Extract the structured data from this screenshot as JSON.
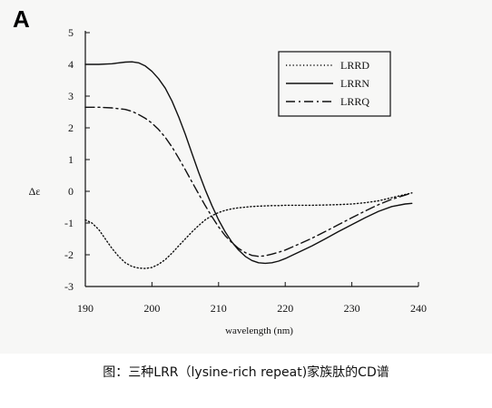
{
  "panel_label": "A",
  "caption": "图：三种LRR（lysine-rich repeat)家族肽的CD谱",
  "chart_data": {
    "type": "line",
    "title": "",
    "xlabel": "wavelength (nm)",
    "ylabel": "Δε",
    "xlim": [
      190,
      240
    ],
    "ylim": [
      -3,
      5
    ],
    "x_ticks": [
      190,
      200,
      210,
      220,
      230,
      240
    ],
    "y_ticks": [
      5,
      4,
      3,
      2,
      1,
      0,
      -1,
      -2,
      -3
    ],
    "grid": false,
    "legend_position": "top-right",
    "series": [
      {
        "name": "LRRD",
        "dash": "dotted",
        "x": [
          190,
          191,
          192,
          193,
          194,
          195,
          196,
          197,
          198,
          199,
          200,
          201,
          202,
          203,
          204,
          205,
          206,
          207,
          208,
          209,
          210,
          211,
          212,
          213,
          214,
          215,
          216,
          217,
          218,
          219,
          220,
          222,
          224,
          226,
          228,
          230,
          232,
          234,
          236,
          238,
          239
        ],
        "y": [
          -0.9,
          -1.0,
          -1.2,
          -1.5,
          -1.8,
          -2.05,
          -2.25,
          -2.37,
          -2.42,
          -2.43,
          -2.4,
          -2.3,
          -2.15,
          -1.95,
          -1.72,
          -1.5,
          -1.28,
          -1.08,
          -0.9,
          -0.77,
          -0.67,
          -0.6,
          -0.55,
          -0.52,
          -0.5,
          -0.48,
          -0.47,
          -0.46,
          -0.45,
          -0.45,
          -0.44,
          -0.44,
          -0.44,
          -0.43,
          -0.42,
          -0.4,
          -0.36,
          -0.3,
          -0.2,
          -0.1,
          -0.05
        ]
      },
      {
        "name": "LRRN",
        "dash": "solid",
        "x": [
          190,
          192,
          194,
          196,
          197,
          198,
          199,
          200,
          201,
          202,
          203,
          204,
          205,
          206,
          207,
          208,
          209,
          210,
          211,
          212,
          213,
          214,
          215,
          216,
          217,
          218,
          219,
          220,
          221,
          222,
          224,
          226,
          228,
          230,
          232,
          234,
          236,
          238,
          239
        ],
        "y": [
          4.0,
          4.0,
          4.02,
          4.07,
          4.08,
          4.05,
          3.95,
          3.78,
          3.55,
          3.25,
          2.85,
          2.35,
          1.8,
          1.2,
          0.6,
          0.05,
          -0.45,
          -0.9,
          -1.28,
          -1.6,
          -1.85,
          -2.05,
          -2.18,
          -2.25,
          -2.27,
          -2.25,
          -2.2,
          -2.12,
          -2.02,
          -1.92,
          -1.72,
          -1.5,
          -1.27,
          -1.05,
          -0.83,
          -0.63,
          -0.48,
          -0.4,
          -0.38
        ]
      },
      {
        "name": "LRRQ",
        "dash": "dash-dot",
        "x": [
          190,
          192,
          194,
          196,
          197,
          198,
          199,
          200,
          201,
          202,
          203,
          204,
          205,
          206,
          207,
          208,
          209,
          210,
          211,
          212,
          213,
          214,
          215,
          216,
          217,
          218,
          219,
          220,
          221,
          222,
          224,
          226,
          228,
          230,
          232,
          234,
          236,
          238,
          239
        ],
        "y": [
          2.65,
          2.65,
          2.63,
          2.58,
          2.52,
          2.42,
          2.3,
          2.15,
          1.95,
          1.7,
          1.4,
          1.05,
          0.68,
          0.3,
          -0.08,
          -0.45,
          -0.8,
          -1.12,
          -1.4,
          -1.62,
          -1.8,
          -1.93,
          -2.02,
          -2.05,
          -2.03,
          -1.98,
          -1.92,
          -1.85,
          -1.76,
          -1.67,
          -1.48,
          -1.27,
          -1.05,
          -0.83,
          -0.62,
          -0.42,
          -0.25,
          -0.12,
          -0.05
        ]
      }
    ]
  }
}
